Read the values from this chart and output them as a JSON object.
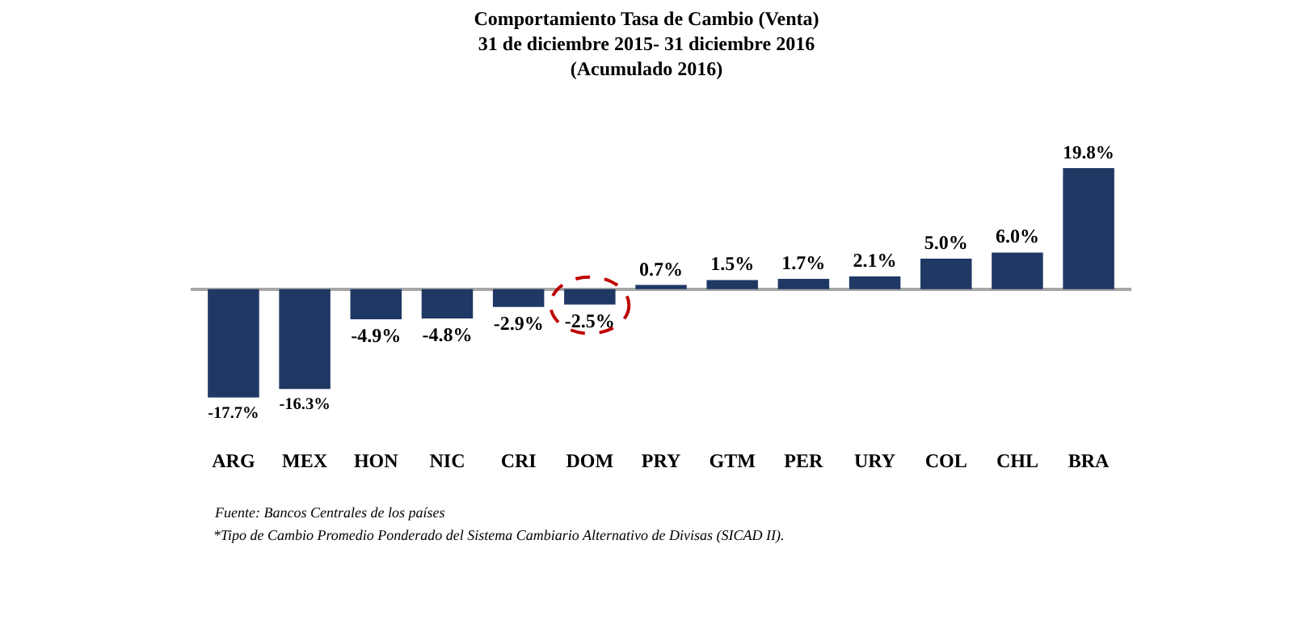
{
  "chart_data": {
    "type": "bar",
    "title": "Comportamiento Tasa de Cambio (Venta)\n31 de diciembre 2015- 31 diciembre 2016\n(Acumulado 2016)",
    "categories": [
      "ARG",
      "MEX",
      "HON",
      "NIC",
      "CRI",
      "DOM",
      "PRY",
      "GTM",
      "PER",
      "URY",
      "COL",
      "CHL",
      "BRA"
    ],
    "values": [
      -17.7,
      -16.3,
      -4.9,
      -4.8,
      -2.9,
      -2.5,
      0.7,
      1.5,
      1.7,
      2.1,
      5.0,
      6.0,
      19.8
    ],
    "value_labels": [
      "-17.7%",
      "-16.3%",
      "-4.9%",
      "-4.8%",
      "-2.9%",
      "-2.5%",
      "0.7%",
      "1.5%",
      "1.7%",
      "2.1%",
      "5.0%",
      "6.0%",
      "19.8%"
    ],
    "color": "#1f3864",
    "annotations": [
      "Fuente: Bancos Centrales de los países",
      "*Tipo de Cambio Promedio Ponderado del Sistema Cambiario Alternativo de Divisas (SICAD II)."
    ],
    "legend": false
  }
}
